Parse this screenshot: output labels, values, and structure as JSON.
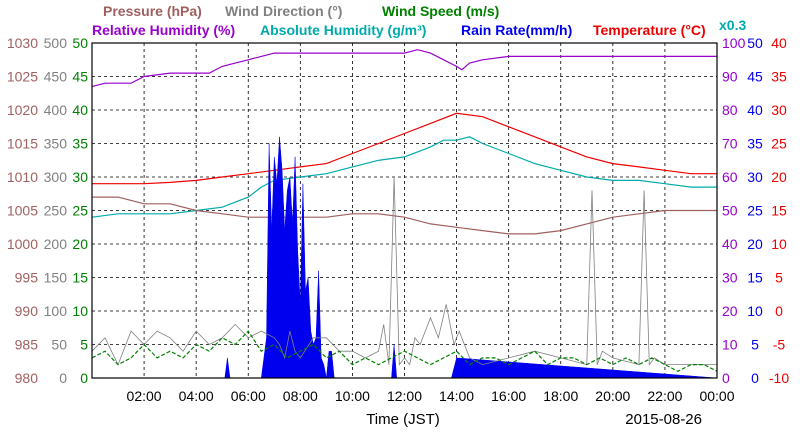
{
  "chart_data": {
    "type": "line",
    "date": "2015-08-26",
    "xlabel": "Time (JST)",
    "x_ticks": [
      "02:00",
      "04:00",
      "06:00",
      "08:00",
      "10:00",
      "12:00",
      "14:00",
      "16:00",
      "18:00",
      "20:00",
      "22:00",
      "00:00"
    ],
    "x_range_hours": [
      0,
      24
    ],
    "grid": true,
    "legend": [
      {
        "id": "pressure",
        "label": "Pressure (hPa)",
        "color": "#a06060"
      },
      {
        "id": "wind_dir",
        "label": "Wind Direction (°)",
        "color": "#808080"
      },
      {
        "id": "wind_speed",
        "label": "Wind Speed (m/s)",
        "color": "#008000"
      },
      {
        "id": "rh",
        "label": "Relative Humidity (%)",
        "color": "#9900cc"
      },
      {
        "id": "ah",
        "label": "Absolute Humidity (g/m³)",
        "color": "#00aaaa"
      },
      {
        "id": "ah_scale",
        "label": "x0.3",
        "color": "#00aaaa"
      },
      {
        "id": "rain",
        "label": "Rain Rate(mm/h)",
        "color": "#0000ee"
      },
      {
        "id": "temp",
        "label": "Temperature (°C)",
        "color": "#ee0000"
      }
    ],
    "axes": [
      {
        "series": "pressure",
        "side": "left",
        "ylim": [
          980,
          1030
        ],
        "ticks": [
          "980",
          "985",
          "990",
          "995",
          "1000",
          "1005",
          "1010",
          "1015",
          "1020",
          "1025",
          "1030"
        ],
        "color": "#a06060"
      },
      {
        "series": "wind_dir",
        "side": "left",
        "ylim": [
          0,
          500
        ],
        "ticks": [
          "0",
          "50",
          "100",
          "150",
          "200",
          "250",
          "300",
          "350",
          "400",
          "450",
          "500"
        ],
        "color": "#808080"
      },
      {
        "series": "wind_speed",
        "side": "left",
        "ylim": [
          0,
          50
        ],
        "ticks": [
          "0",
          "5",
          "10",
          "15",
          "20",
          "25",
          "30",
          "35",
          "40",
          "45",
          "50"
        ],
        "color": "#008000"
      },
      {
        "series": "rh",
        "side": "right",
        "ylim": [
          0,
          100
        ],
        "ticks": [
          "0",
          "10",
          "20",
          "30",
          "40",
          "50",
          "60",
          "70",
          "80",
          "90",
          "100"
        ],
        "color": "#9900cc"
      },
      {
        "series": "rain",
        "side": "right",
        "ylim": [
          0,
          50
        ],
        "ticks": [
          "0",
          "5",
          "10",
          "15",
          "20",
          "25",
          "30",
          "35",
          "40",
          "45",
          "50"
        ],
        "color": "#0000ee"
      },
      {
        "series": "temp",
        "side": "right",
        "ylim": [
          -10,
          40
        ],
        "ticks": [
          "-10",
          "-5",
          "0",
          "5",
          "10",
          "15",
          "20",
          "25",
          "30",
          "35",
          "40"
        ],
        "color": "#ee0000"
      }
    ],
    "series": [
      {
        "id": "rh",
        "name": "Relative Humidity (%)",
        "axis": "rh",
        "style": "line",
        "x": [
          0,
          0.5,
          1,
          1.5,
          2,
          3,
          4,
          4.5,
          5,
          5.5,
          6,
          6.5,
          7,
          8,
          9,
          10,
          11,
          12,
          12.5,
          13,
          13.5,
          14,
          14.2,
          14.5,
          15,
          16,
          17,
          18,
          19,
          20,
          21,
          22,
          23,
          24
        ],
        "y": [
          87,
          88,
          88,
          88,
          90,
          91,
          91,
          91,
          93,
          94,
          95,
          96,
          97,
          97,
          97,
          97,
          97,
          97,
          98,
          97,
          95,
          93,
          92,
          94,
          95,
          96,
          96,
          96,
          96,
          96,
          96,
          96,
          96,
          96
        ]
      },
      {
        "id": "ah",
        "name": "Absolute Humidity (g/m³)",
        "axis": "rh",
        "style": "line",
        "x": [
          0,
          1,
          2,
          3,
          4,
          5,
          6,
          6.5,
          7,
          8,
          9,
          10,
          11,
          12,
          13,
          13.5,
          14,
          14.5,
          15,
          16,
          17,
          18,
          19,
          20,
          21,
          22,
          23,
          24
        ],
        "y": [
          48,
          49,
          49,
          49,
          50,
          51,
          54,
          57,
          59,
          60,
          61,
          63,
          65,
          66,
          69,
          71,
          71,
          72,
          70,
          67,
          64,
          62,
          60,
          59,
          59,
          58,
          57,
          57
        ]
      },
      {
        "id": "temp",
        "name": "Temperature (°C)",
        "axis": "temp",
        "style": "line",
        "x": [
          0,
          1,
          2,
          3,
          4,
          5,
          6,
          7,
          8,
          9,
          10,
          11,
          12,
          13,
          14,
          15,
          16,
          17,
          18,
          19,
          20,
          21,
          22,
          23,
          24
        ],
        "y": [
          19,
          19,
          19,
          19.2,
          19.5,
          20,
          20.5,
          21,
          21.5,
          22,
          23.5,
          25,
          26.5,
          28,
          29.5,
          29,
          27.5,
          26,
          24.5,
          23,
          22,
          21.5,
          21,
          20.5,
          20.5
        ]
      },
      {
        "id": "pressure",
        "name": "Pressure (hPa)",
        "axis": "pressure",
        "style": "line",
        "x": [
          0,
          1,
          2,
          3,
          4,
          5,
          6,
          7,
          8,
          9,
          10,
          11,
          12,
          13,
          14,
          15,
          16,
          17,
          18,
          19,
          20,
          21,
          22,
          23,
          24
        ],
        "y": [
          1007,
          1007,
          1006,
          1006,
          1005,
          1004.5,
          1004,
          1004,
          1004,
          1004,
          1004.5,
          1004.5,
          1004,
          1003,
          1002.5,
          1002,
          1001.5,
          1001.5,
          1002,
          1003,
          1004,
          1004.5,
          1005,
          1005,
          1005
        ]
      },
      {
        "id": "rain",
        "name": "Rain Rate(mm/h)",
        "axis": "rain",
        "style": "area",
        "x": [
          0,
          5.1,
          5.2,
          5.3,
          6.5,
          6.6,
          6.7,
          6.8,
          6.9,
          7.0,
          7.1,
          7.2,
          7.3,
          7.4,
          7.5,
          7.6,
          7.7,
          7.8,
          7.9,
          8.0,
          8.1,
          8.2,
          8.3,
          8.4,
          8.5,
          8.6,
          8.7,
          8.8,
          8.9,
          9.0,
          9.1,
          9.2,
          9.3,
          9.4,
          11.5,
          11.6,
          11.7,
          13.8,
          14.0,
          24
        ],
        "y": [
          0,
          0,
          3,
          0,
          0,
          3,
          6,
          35,
          22,
          33,
          29,
          36,
          31,
          22,
          28,
          30,
          23,
          33,
          19,
          11,
          29,
          13,
          15,
          7,
          5,
          6,
          16,
          3,
          2,
          0,
          4,
          4,
          0,
          0,
          0,
          5,
          0,
          0,
          3,
          0
        ]
      },
      {
        "id": "wind_dir",
        "name": "Wind Direction (°)",
        "axis": "wind_dir",
        "style": "line",
        "x": [
          0,
          0.5,
          1,
          1.5,
          2,
          2.5,
          3,
          3.5,
          4,
          4.5,
          5,
          5.5,
          6,
          6.5,
          7,
          7.2,
          7.4,
          7.6,
          7.8,
          8,
          8.5,
          9,
          9.5,
          10,
          10.5,
          11,
          11.2,
          11.4,
          11.6,
          11.8,
          12,
          12.2,
          12.4,
          12.6,
          12.8,
          13,
          13.3,
          13.6,
          13.9,
          14.1,
          14.5,
          15,
          16,
          17,
          18,
          19,
          19.2,
          19.4,
          19.6,
          20,
          21,
          21.2,
          21.4,
          21.6,
          22,
          23,
          24
        ],
        "y": [
          40,
          60,
          20,
          70,
          50,
          70,
          60,
          40,
          70,
          50,
          60,
          80,
          60,
          70,
          60,
          50,
          30,
          70,
          40,
          30,
          60,
          60,
          40,
          40,
          30,
          40,
          80,
          20,
          300,
          20,
          30,
          20,
          60,
          50,
          70,
          90,
          60,
          110,
          50,
          70,
          30,
          20,
          30,
          40,
          30,
          20,
          280,
          20,
          40,
          30,
          20,
          280,
          20,
          30,
          20,
          20,
          20
        ]
      },
      {
        "id": "wind_speed",
        "name": "Wind Speed (m/s)",
        "axis": "wind_speed",
        "style": "line",
        "x": [
          0,
          0.5,
          1,
          1.5,
          2,
          2.5,
          3,
          3.5,
          4,
          4.5,
          5,
          5.5,
          6,
          6.5,
          7,
          7.5,
          8,
          8.5,
          9,
          9.5,
          10,
          10.5,
          11,
          11.5,
          12,
          12.5,
          13,
          13.5,
          14,
          14.5,
          15,
          15.5,
          16,
          16.5,
          17,
          17.5,
          18,
          18.5,
          19,
          19.5,
          20,
          20.5,
          21,
          21.5,
          22,
          22.5,
          23,
          23.5,
          24
        ],
        "y": [
          3,
          4,
          2,
          3,
          5,
          3,
          4,
          3,
          5,
          4,
          6,
          5,
          7,
          4,
          5,
          3,
          4,
          5,
          3,
          4,
          2,
          3,
          2,
          3,
          4,
          3,
          2,
          3,
          4,
          2,
          3,
          3,
          2,
          3,
          4,
          2,
          3,
          3,
          2,
          3,
          2,
          3,
          2,
          3,
          2,
          1,
          2,
          2,
          1
        ]
      }
    ]
  }
}
